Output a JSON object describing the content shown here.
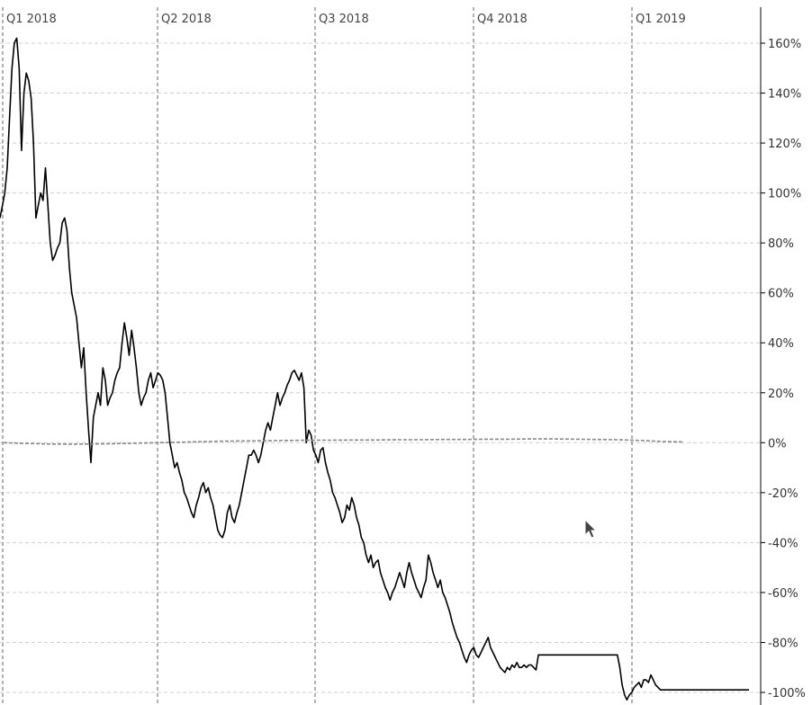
{
  "chart_data": {
    "type": "line",
    "title": "",
    "xlabel": "",
    "ylabel": "",
    "x_tick_labels": [
      "Q1 2018",
      "Q2 2018",
      "Q3 2018",
      "Q4 2018",
      "Q1 2019"
    ],
    "y_tick_labels": [
      "160%",
      "140%",
      "120%",
      "100%",
      "80%",
      "60%",
      "40%",
      "20%",
      "0%",
      "-20%",
      "-40%",
      "-60%",
      "-80%",
      "-100%"
    ],
    "y_ticks": [
      160,
      140,
      120,
      100,
      80,
      60,
      40,
      20,
      0,
      -20,
      -40,
      -60,
      -80,
      -100
    ],
    "ylim": [
      -102,
      165
    ],
    "grid": true,
    "y_axis_side": "right",
    "series": [
      {
        "color": "#000000",
        "style": "solid",
        "values": [
          90,
          95,
          100,
          110,
          130,
          150,
          160,
          162,
          150,
          117,
          140,
          148,
          145,
          138,
          120,
          90,
          95,
          100,
          97,
          110,
          95,
          80,
          73,
          75,
          78,
          80,
          88,
          90,
          85,
          70,
          60,
          55,
          50,
          40,
          30,
          38,
          20,
          5,
          -8,
          10,
          15,
          20,
          15,
          30,
          25,
          15,
          18,
          20,
          25,
          28,
          30,
          40,
          48,
          42,
          35,
          45,
          38,
          30,
          20,
          15,
          18,
          20,
          25,
          28,
          22,
          25,
          28,
          27,
          25,
          20,
          10,
          0,
          -5,
          -10,
          -8,
          -12,
          -15,
          -20,
          -22,
          -25,
          -28,
          -30,
          -25,
          -22,
          -18,
          -16,
          -20,
          -18,
          -22,
          -25,
          -30,
          -35,
          -37,
          -38,
          -35,
          -28,
          -25,
          -30,
          -32,
          -28,
          -25,
          -20,
          -15,
          -10,
          -5,
          -5,
          -3,
          -5,
          -8,
          -5,
          0,
          5,
          8,
          5,
          10,
          15,
          20,
          15,
          18,
          20,
          23,
          25,
          28,
          29,
          27,
          25,
          28,
          22,
          0,
          5,
          3,
          -3,
          -5,
          -8,
          -3,
          -2,
          -8,
          -12,
          -15,
          -20,
          -22,
          -25,
          -28,
          -32,
          -30,
          -25,
          -27,
          -22,
          -25,
          -30,
          -33,
          -38,
          -40,
          -45,
          -48,
          -45,
          -50,
          -48,
          -47,
          -52,
          -55,
          -58,
          -60,
          -63,
          -60,
          -58,
          -55,
          -52,
          -55,
          -58,
          -52,
          -48,
          -52,
          -55,
          -58,
          -60,
          -62,
          -58,
          -55,
          -45,
          -48,
          -52,
          -55,
          -58,
          -55,
          -60,
          -62,
          -65,
          -68,
          -72,
          -75,
          -78,
          -80,
          -83,
          -86,
          -88,
          -85,
          -83,
          -82,
          -85,
          -86,
          -84,
          -82,
          -80,
          -78,
          -82,
          -84,
          -86,
          -88,
          -90,
          -91,
          -92,
          -90,
          -91,
          -89,
          -90,
          -88,
          -90,
          -90,
          -89,
          -90,
          -89,
          -89,
          -90,
          -91,
          -85,
          -85,
          -85,
          -85,
          -85,
          -85,
          -85,
          -85,
          -85,
          -85,
          -85,
          -85,
          -85,
          -85,
          -85,
          -85,
          -85,
          -85,
          -85,
          -85,
          -85,
          -85,
          -85,
          -85,
          -85,
          -85,
          -85,
          -85,
          -85,
          -85,
          -85,
          -85,
          -85,
          -85,
          -90,
          -97,
          -101,
          -103,
          -101,
          -100,
          -98,
          -97,
          -96,
          -98,
          -95,
          -95,
          -96,
          -93,
          -95,
          -97,
          -98,
          -99,
          -99,
          -99,
          -99,
          -99,
          -99,
          -99,
          -99,
          -99,
          -99,
          -99,
          -99,
          -99,
          -99,
          -99,
          -99,
          -99,
          -99,
          -99,
          -99,
          -99,
          -99,
          -99,
          -99,
          -99,
          -99,
          -99,
          -99,
          -99,
          -99,
          -99,
          -99,
          -99,
          -99,
          -99,
          -99,
          -99,
          -99
        ]
      },
      {
        "color": "#888888",
        "style": "dashed",
        "values": [
          0,
          -0.3,
          -0.5,
          -0.6,
          -0.5,
          -0.4,
          -0.2,
          0,
          0.2,
          0.4,
          0.6,
          0.7,
          0.8,
          0.9,
          1.0,
          1.0,
          1.1,
          1.1,
          1.2,
          1.2,
          1.3,
          1.3,
          1.4,
          1.4,
          1.5,
          1.5,
          1.4,
          1.3,
          1.2,
          0.9,
          0.5,
          0.3
        ]
      }
    ]
  },
  "cursor": {
    "icon": "pointer-arrow-icon"
  }
}
